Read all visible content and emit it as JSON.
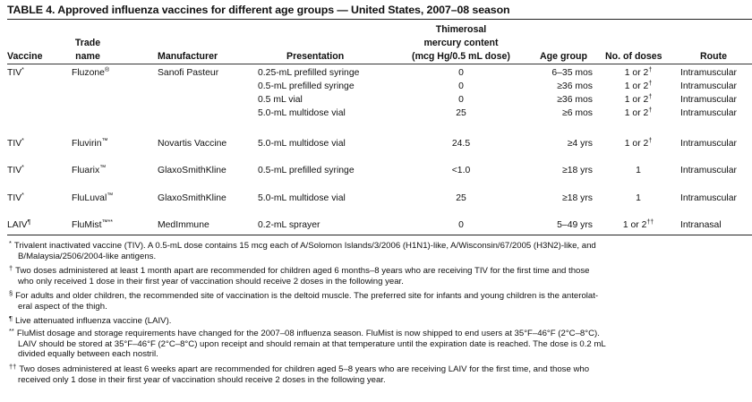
{
  "title": "TABLE 4. Approved influenza vaccines for different age groups — United States, 2007–08 season",
  "headers": {
    "vaccine": "Vaccine",
    "trade_line1": "Trade",
    "trade_line2": "name",
    "manufacturer": "Manufacturer",
    "presentation": "Presentation",
    "thimerosal_line1": "Thimerosal",
    "thimerosal_line2": "mercury content",
    "thimerosal_line3": "(mcg Hg/0.5 mL dose)",
    "age": "Age group",
    "doses": "No. of doses",
    "route": "Route"
  },
  "groups": [
    {
      "vaccine": "TIV",
      "vaccine_mark": "*",
      "trade": "Fluzone",
      "trade_mark": "®",
      "manufacturer": "Sanofi Pasteur",
      "rows": [
        {
          "presentation": "0.25-mL prefilled syringe",
          "mercury": "0",
          "age": "6–35 mos",
          "doses": "1 or 2",
          "doses_mark": "†",
          "route": "Intramuscular"
        },
        {
          "presentation": "0.5-mL prefilled syringe",
          "mercury": "0",
          "age": "≥36 mos",
          "doses": "1 or 2",
          "doses_mark": "†",
          "route": "Intramuscular"
        },
        {
          "presentation": "0.5 mL vial",
          "mercury": "0",
          "age": "≥36 mos",
          "doses": "1 or 2",
          "doses_mark": "†",
          "route": "Intramuscular"
        },
        {
          "presentation": "5.0-mL multidose vial",
          "mercury": "25",
          "age": "≥6 mos",
          "doses": "1 or 2",
          "doses_mark": "†",
          "route": "Intramuscular"
        }
      ]
    },
    {
      "vaccine": "TIV",
      "vaccine_mark": "*",
      "trade": "Fluvirin",
      "trade_mark": "™",
      "manufacturer": "Novartis Vaccine",
      "rows": [
        {
          "presentation": "5.0-mL multidose vial",
          "mercury": "24.5",
          "age": "≥4 yrs",
          "doses": "1 or 2",
          "doses_mark": "†",
          "route": "Intramuscular"
        }
      ]
    },
    {
      "vaccine": "TIV",
      "vaccine_mark": "*",
      "trade": "Fluarix",
      "trade_mark": "™",
      "manufacturer": "GlaxoSmithKline",
      "rows": [
        {
          "presentation": "0.5-mL prefilled syringe",
          "mercury": "<1.0",
          "age": "≥18 yrs",
          "doses": "1",
          "doses_mark": "",
          "route": "Intramuscular"
        }
      ]
    },
    {
      "vaccine": "TIV",
      "vaccine_mark": "*",
      "trade": "FluLuval",
      "trade_mark": "™",
      "manufacturer": "GlaxoSmithKline",
      "rows": [
        {
          "presentation": "5.0-mL multidose vial",
          "mercury": "25",
          "age": "≥18 yrs",
          "doses": "1",
          "doses_mark": "",
          "route": "Intramuscular"
        }
      ]
    },
    {
      "vaccine": "LAIV",
      "vaccine_mark": "¶",
      "trade": "FluMist",
      "trade_mark": "™**",
      "manufacturer": "MedImmune",
      "rows": [
        {
          "presentation": "0.2-mL sprayer",
          "mercury": "0",
          "age": "5–49 yrs",
          "doses": "1 or 2",
          "doses_mark": "††",
          "route": "Intranasal"
        }
      ]
    }
  ],
  "footnotes": [
    {
      "mark": "*",
      "lines": [
        "Trivalent inactivated vaccine (TIV). A 0.5-mL dose contains 15 mcg each of A/Solomon Islands/3/2006 (H1N1)-like, A/Wisconsin/67/2005 (H3N2)-like, and",
        "B/Malaysia/2506/2004-like antigens."
      ]
    },
    {
      "mark": "†",
      "lines": [
        "Two doses administered at least 1 month apart are recommended for children aged 6 months–8 years who are receiving TIV for the first time and those",
        "who only received 1 dose in their first year of vaccination should receive 2 doses in the following year."
      ]
    },
    {
      "mark": "§",
      "lines": [
        "For adults and older children, the recommended site of vaccination is the deltoid muscle. The preferred site for infants and young children is the anterolat-",
        "eral aspect of the thigh."
      ]
    },
    {
      "mark": "¶",
      "lines": [
        "Live attenuated influenza vaccine (LAIV)."
      ]
    },
    {
      "mark": "**",
      "lines": [
        "FluMist dosage and storage requirements have changed for the 2007–08 influenza season. FluMist is now shipped to end users at 35°F–46°F (2°C–8°C).",
        "LAIV should be stored at 35°F–46°F (2°C–8°C) upon receipt and should remain at that temperature until the expiration date is reached. The dose is 0.2 mL",
        "divided equally between each nostril."
      ]
    },
    {
      "mark": "††",
      "lines": [
        "Two doses administered at least 6 weeks apart are recommended for children aged 5–8 years who are receiving LAIV for the first time, and those who",
        "received only 1 dose in their first year of vaccination should receive 2 doses in the following year."
      ]
    }
  ]
}
